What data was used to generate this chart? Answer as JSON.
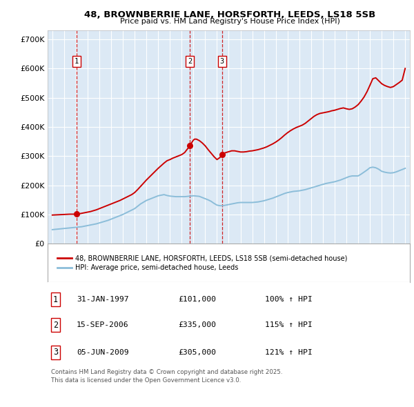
{
  "title_line1": "48, BROWNBERRIE LANE, HORSFORTH, LEEDS, LS18 5SB",
  "title_line2": "Price paid vs. HM Land Registry's House Price Index (HPI)",
  "ylim": [
    0,
    730000
  ],
  "yticks": [
    0,
    100000,
    200000,
    300000,
    400000,
    500000,
    600000,
    700000
  ],
  "ytick_labels": [
    "£0",
    "£100K",
    "£200K",
    "£300K",
    "£400K",
    "£500K",
    "£600K",
    "£700K"
  ],
  "xlim_start": 1994.6,
  "xlim_end": 2025.4,
  "background_color": "#dce9f5",
  "grid_color": "#ffffff",
  "red_line_color": "#cc0000",
  "blue_line_color": "#8bbdd9",
  "purchase_dates": [
    1997.08,
    2006.71,
    2009.42
  ],
  "purchase_prices": [
    101000,
    335000,
    305000
  ],
  "purchase_labels": [
    "1",
    "2",
    "3"
  ],
  "legend_red_label": "48, BROWNBERRIE LANE, HORSFORTH, LEEDS, LS18 5SB (semi-detached house)",
  "legend_blue_label": "HPI: Average price, semi-detached house, Leeds",
  "table_entries": [
    {
      "num": "1",
      "date": "31-JAN-1997",
      "price": "£101,000",
      "hpi": "100% ↑ HPI"
    },
    {
      "num": "2",
      "date": "15-SEP-2006",
      "price": "£335,000",
      "hpi": "115% ↑ HPI"
    },
    {
      "num": "3",
      "date": "05-JUN-2009",
      "price": "£305,000",
      "hpi": "121% ↑ HPI"
    }
  ],
  "footer": "Contains HM Land Registry data © Crown copyright and database right 2025.\nThis data is licensed under the Open Government Licence v3.0.",
  "hpi_years": [
    1995.0,
    1995.25,
    1995.5,
    1995.75,
    1996.0,
    1996.25,
    1996.5,
    1996.75,
    1997.0,
    1997.25,
    1997.5,
    1997.75,
    1998.0,
    1998.25,
    1998.5,
    1998.75,
    1999.0,
    1999.25,
    1999.5,
    1999.75,
    2000.0,
    2000.25,
    2000.5,
    2000.75,
    2001.0,
    2001.25,
    2001.5,
    2001.75,
    2002.0,
    2002.25,
    2002.5,
    2002.75,
    2003.0,
    2003.25,
    2003.5,
    2003.75,
    2004.0,
    2004.25,
    2004.5,
    2004.75,
    2005.0,
    2005.25,
    2005.5,
    2005.75,
    2006.0,
    2006.25,
    2006.5,
    2006.75,
    2007.0,
    2007.25,
    2007.5,
    2007.75,
    2008.0,
    2008.25,
    2008.5,
    2008.75,
    2009.0,
    2009.25,
    2009.5,
    2009.75,
    2010.0,
    2010.25,
    2010.5,
    2010.75,
    2011.0,
    2011.25,
    2011.5,
    2011.75,
    2012.0,
    2012.25,
    2012.5,
    2012.75,
    2013.0,
    2013.25,
    2013.5,
    2013.75,
    2014.0,
    2014.25,
    2014.5,
    2014.75,
    2015.0,
    2015.25,
    2015.5,
    2015.75,
    2016.0,
    2016.25,
    2016.5,
    2016.75,
    2017.0,
    2017.25,
    2017.5,
    2017.75,
    2018.0,
    2018.25,
    2018.5,
    2018.75,
    2019.0,
    2019.25,
    2019.5,
    2019.75,
    2020.0,
    2020.25,
    2020.5,
    2020.75,
    2021.0,
    2021.25,
    2021.5,
    2021.75,
    2022.0,
    2022.25,
    2022.5,
    2022.75,
    2023.0,
    2023.25,
    2023.5,
    2023.75,
    2024.0,
    2024.25,
    2024.5,
    2024.75,
    2025.0
  ],
  "hpi_values": [
    48000,
    49000,
    50000,
    51000,
    52000,
    53000,
    54000,
    55000,
    56000,
    57000,
    58000,
    60000,
    62000,
    64000,
    66000,
    68000,
    71000,
    74000,
    77000,
    80000,
    84000,
    88000,
    92000,
    96000,
    100000,
    105000,
    110000,
    115000,
    120000,
    128000,
    136000,
    142000,
    148000,
    152000,
    156000,
    160000,
    164000,
    166000,
    168000,
    165000,
    163000,
    162000,
    161000,
    161000,
    161000,
    161000,
    162000,
    163000,
    164000,
    163000,
    162000,
    158000,
    154000,
    150000,
    145000,
    138000,
    132000,
    130000,
    130000,
    132000,
    134000,
    136000,
    138000,
    140000,
    141000,
    141000,
    141000,
    141000,
    141000,
    142000,
    143000,
    145000,
    147000,
    150000,
    153000,
    156000,
    160000,
    164000,
    168000,
    172000,
    175000,
    177000,
    179000,
    180000,
    181000,
    183000,
    185000,
    188000,
    191000,
    194000,
    197000,
    200000,
    203000,
    206000,
    208000,
    210000,
    212000,
    215000,
    218000,
    222000,
    226000,
    230000,
    232000,
    232000,
    232000,
    238000,
    245000,
    252000,
    260000,
    262000,
    260000,
    255000,
    248000,
    245000,
    243000,
    242000,
    243000,
    246000,
    250000,
    254000,
    258000
  ],
  "red_years": [
    1995.0,
    1995.25,
    1995.5,
    1995.75,
    1996.0,
    1996.25,
    1996.5,
    1996.75,
    1997.0,
    1997.08,
    1997.25,
    1997.5,
    1997.75,
    1998.0,
    1998.25,
    1998.5,
    1998.75,
    1999.0,
    1999.25,
    1999.5,
    1999.75,
    2000.0,
    2000.25,
    2000.5,
    2000.75,
    2001.0,
    2001.25,
    2001.5,
    2001.75,
    2002.0,
    2002.25,
    2002.5,
    2002.75,
    2003.0,
    2003.25,
    2003.5,
    2003.75,
    2004.0,
    2004.25,
    2004.5,
    2004.75,
    2005.0,
    2005.25,
    2005.5,
    2005.75,
    2006.0,
    2006.25,
    2006.5,
    2006.71,
    2006.75,
    2007.0,
    2007.1,
    2007.25,
    2007.5,
    2007.75,
    2008.0,
    2008.25,
    2008.5,
    2008.75,
    2009.0,
    2009.25,
    2009.42,
    2009.5,
    2009.75,
    2010.0,
    2010.25,
    2010.5,
    2010.75,
    2011.0,
    2011.25,
    2011.5,
    2011.75,
    2012.0,
    2012.25,
    2012.5,
    2012.75,
    2013.0,
    2013.25,
    2013.5,
    2013.75,
    2014.0,
    2014.25,
    2014.5,
    2014.75,
    2015.0,
    2015.25,
    2015.5,
    2015.75,
    2016.0,
    2016.25,
    2016.5,
    2016.75,
    2017.0,
    2017.25,
    2017.5,
    2017.75,
    2018.0,
    2018.25,
    2018.5,
    2018.75,
    2019.0,
    2019.25,
    2019.5,
    2019.75,
    2020.0,
    2020.25,
    2020.5,
    2020.75,
    2021.0,
    2021.25,
    2021.5,
    2021.75,
    2022.0,
    2022.25,
    2022.5,
    2022.75,
    2023.0,
    2023.25,
    2023.5,
    2023.75,
    2024.0,
    2024.25,
    2024.5,
    2024.75,
    2025.0
  ],
  "red_values": [
    98000,
    98500,
    99000,
    99500,
    100000,
    100500,
    101000,
    101000,
    101000,
    101000,
    102000,
    104000,
    106000,
    108000,
    110000,
    113000,
    116000,
    120000,
    124000,
    128000,
    132000,
    136000,
    140000,
    144000,
    148000,
    153000,
    158000,
    163000,
    168000,
    175000,
    185000,
    196000,
    207000,
    218000,
    228000,
    238000,
    248000,
    258000,
    267000,
    276000,
    284000,
    288000,
    293000,
    297000,
    301000,
    305000,
    312000,
    325000,
    335000,
    340000,
    355000,
    358000,
    358000,
    353000,
    345000,
    335000,
    322000,
    310000,
    298000,
    288000,
    295000,
    305000,
    308000,
    312000,
    315000,
    318000,
    318000,
    316000,
    314000,
    314000,
    315000,
    317000,
    318000,
    320000,
    322000,
    325000,
    328000,
    332000,
    337000,
    342000,
    348000,
    355000,
    363000,
    372000,
    380000,
    387000,
    393000,
    398000,
    402000,
    406000,
    412000,
    420000,
    428000,
    436000,
    442000,
    446000,
    448000,
    450000,
    452000,
    455000,
    457000,
    460000,
    463000,
    465000,
    462000,
    460000,
    462000,
    468000,
    476000,
    488000,
    502000,
    520000,
    542000,
    565000,
    568000,
    558000,
    548000,
    542000,
    538000,
    535000,
    538000,
    545000,
    552000,
    560000,
    600000
  ]
}
